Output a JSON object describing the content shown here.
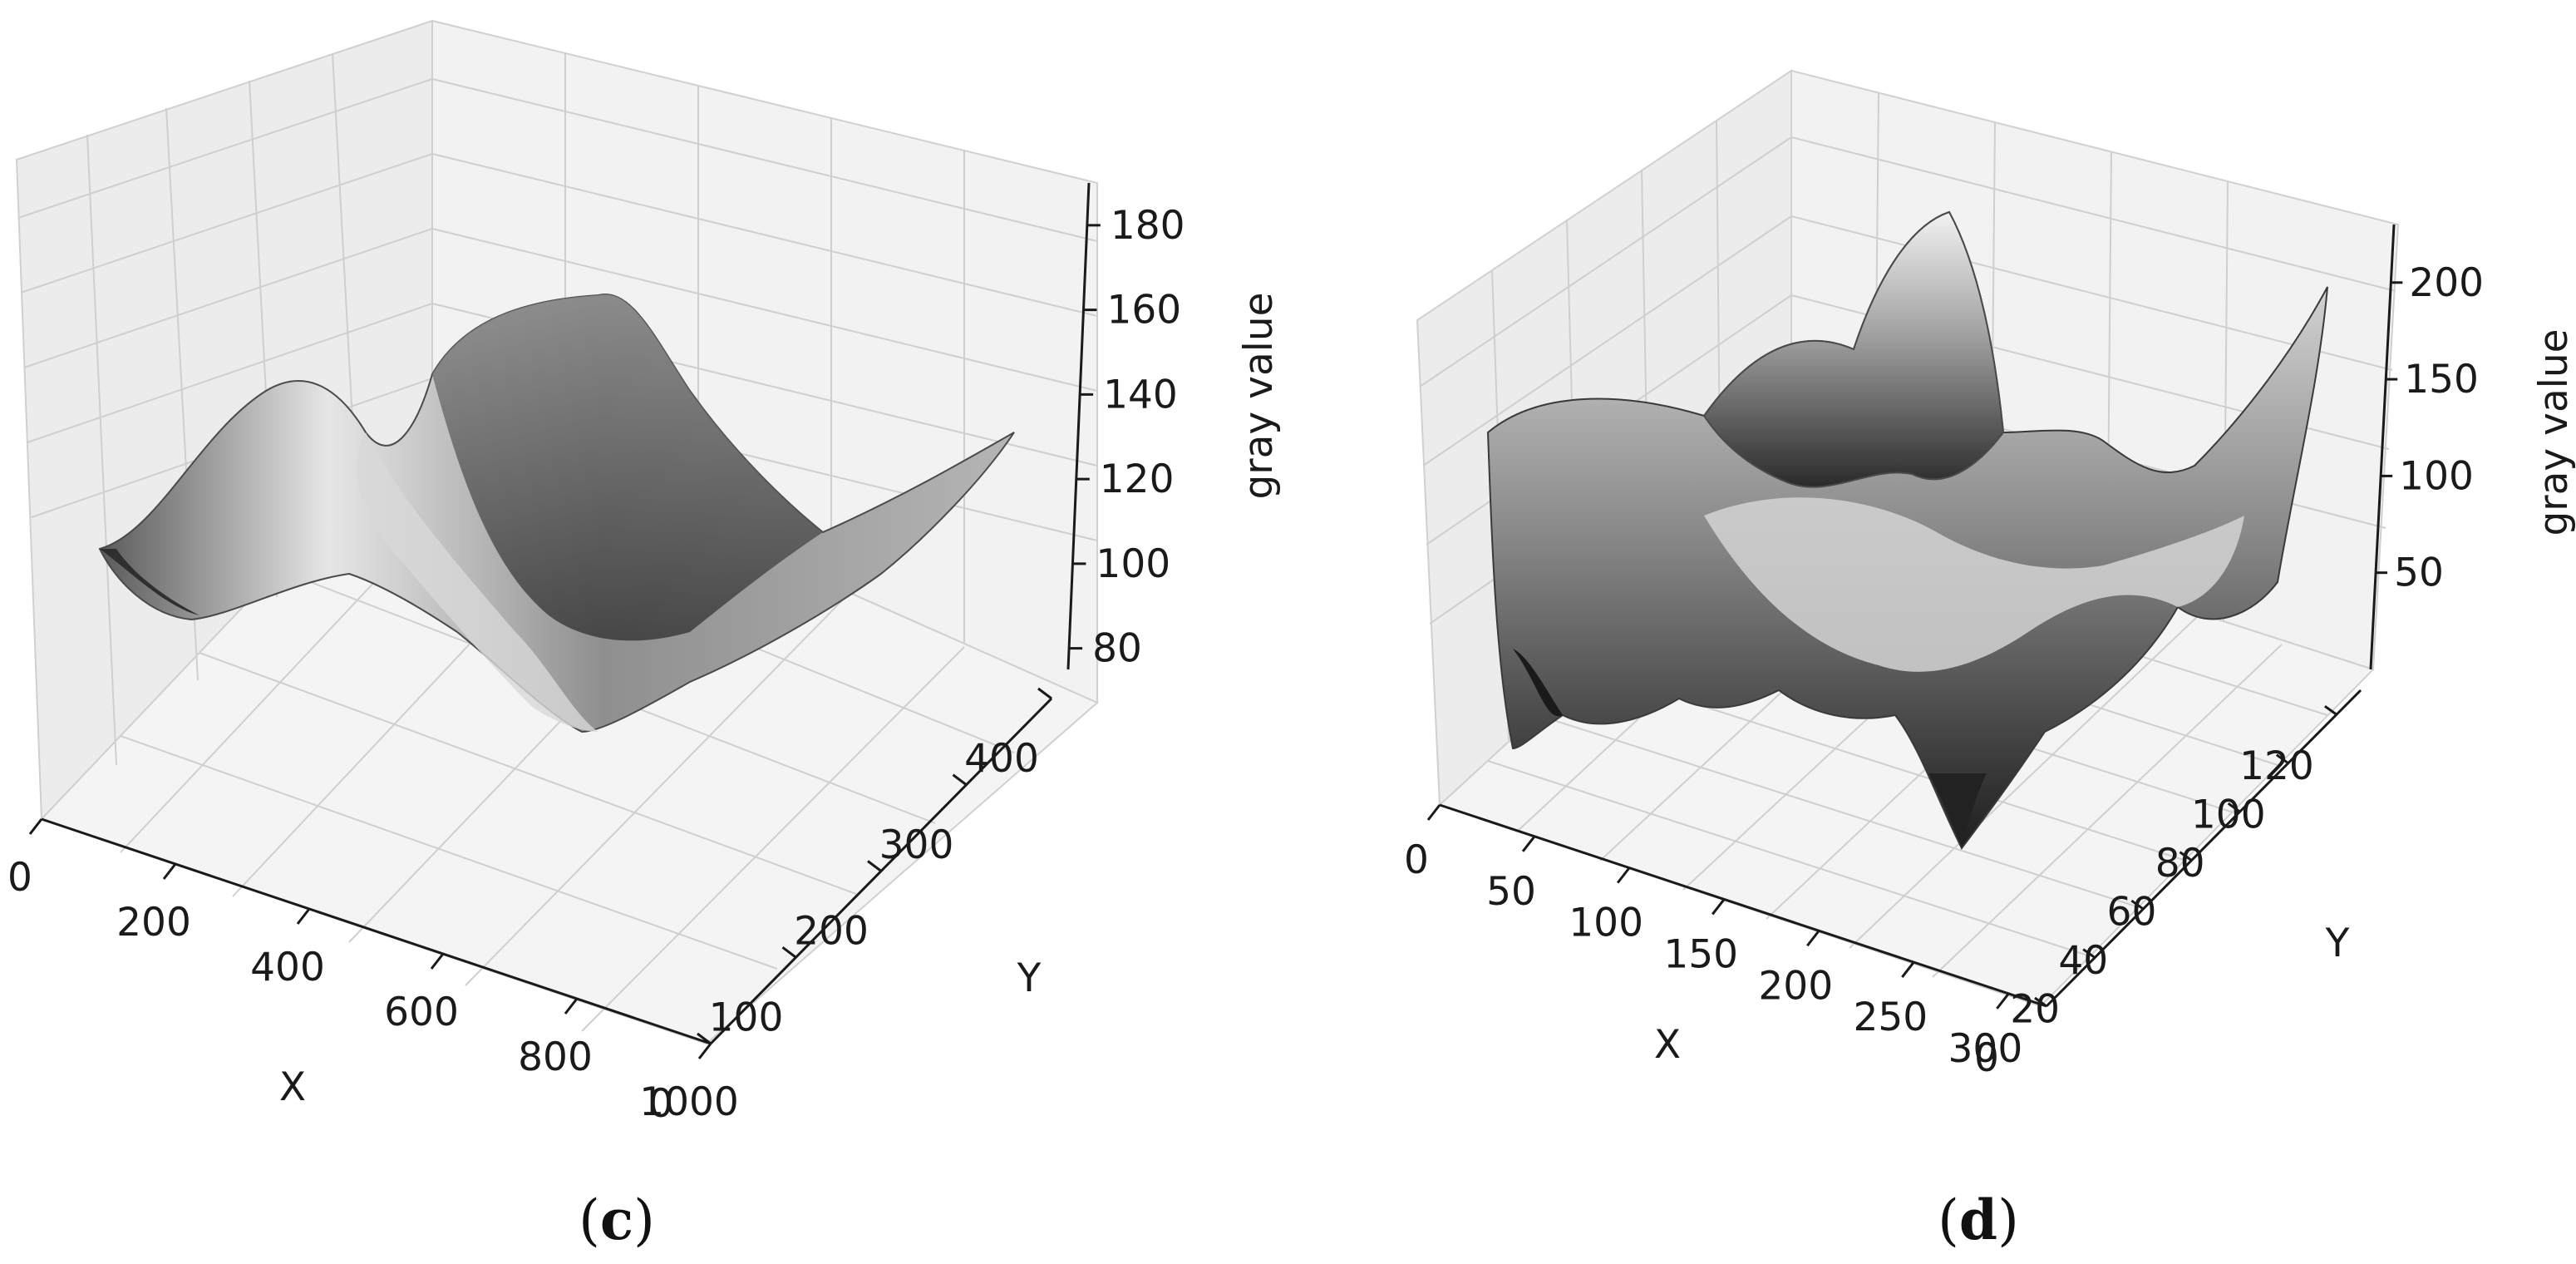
{
  "chart_data": [
    {
      "type": "surface3d",
      "caption_letter": "c",
      "xlabel": "X",
      "ylabel": "Y",
      "zlabel": "gray value",
      "xlim": [
        0,
        1000
      ],
      "ylim": [
        0,
        400
      ],
      "zlim": [
        75,
        190
      ],
      "x_ticks": [
        "0",
        "200",
        "400",
        "600",
        "800",
        "1000"
      ],
      "y_ticks": [
        "0",
        "100",
        "200",
        "300",
        "400"
      ],
      "z_ticks": [
        "80",
        "100",
        "120",
        "140",
        "160",
        "180"
      ],
      "grid": true,
      "colormap": "gray"
    },
    {
      "type": "surface3d",
      "caption_letter": "d",
      "xlabel": "X",
      "ylabel": "Y",
      "zlabel": "gray value",
      "xlim": [
        0,
        320
      ],
      "ylim": [
        0,
        130
      ],
      "zlim": [
        0,
        230
      ],
      "x_ticks": [
        "0",
        "50",
        "100",
        "150",
        "200",
        "250",
        "300"
      ],
      "y_ticks": [
        "0",
        "20",
        "40",
        "60",
        "80",
        "100",
        "120"
      ],
      "z_ticks": [
        "50",
        "100",
        "150",
        "200"
      ],
      "grid": true,
      "colormap": "gray"
    }
  ]
}
